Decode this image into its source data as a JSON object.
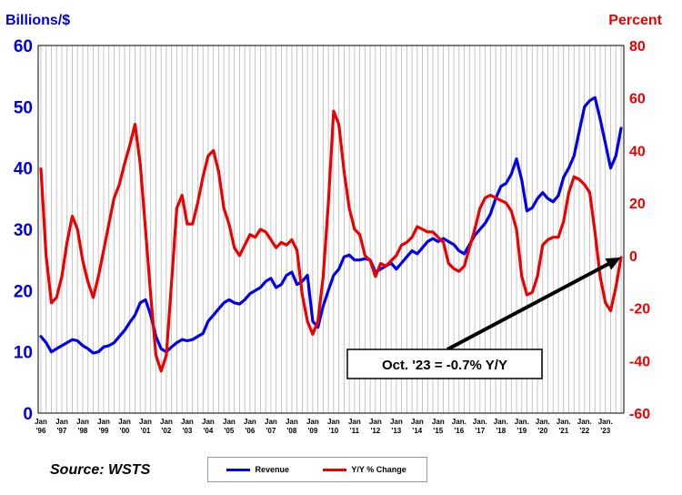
{
  "chart_data": {
    "type": "line",
    "left_axis_title": "Billions/$",
    "right_axis_title": "Percent",
    "left_ylim": [
      0,
      60
    ],
    "left_ticks": [
      "0",
      "10",
      "20",
      "30",
      "40",
      "50",
      "60"
    ],
    "right_ylim": [
      -60,
      80
    ],
    "right_ticks": [
      "-60",
      "-40",
      "-20",
      "0",
      "20",
      "40",
      "60",
      "80"
    ],
    "x_range": [
      "1996-01",
      "2023-10"
    ],
    "x_tick_labels": [
      {
        "top": "Jan",
        "bottom": "'96"
      },
      {
        "top": "Jan",
        "bottom": "'97"
      },
      {
        "top": "Jan",
        "bottom": "'98"
      },
      {
        "top": "Jan",
        "bottom": "'99"
      },
      {
        "top": "Jan",
        "bottom": "'00"
      },
      {
        "top": "Jan",
        "bottom": "'01"
      },
      {
        "top": "Jan",
        "bottom": "'02"
      },
      {
        "top": "Jan",
        "bottom": "'03"
      },
      {
        "top": "Jan",
        "bottom": "'04"
      },
      {
        "top": "Jan",
        "bottom": "'05"
      },
      {
        "top": "Jan",
        "bottom": "'06"
      },
      {
        "top": "Jan",
        "bottom": "'07"
      },
      {
        "top": "Jan",
        "bottom": "'08"
      },
      {
        "top": "Jan",
        "bottom": "'09"
      },
      {
        "top": "Jan",
        "bottom": "'10"
      },
      {
        "top": "Jan",
        "bottom": "'11"
      },
      {
        "top": "Jan",
        "bottom": "'12"
      },
      {
        "top": "Jan",
        "bottom": "'13"
      },
      {
        "top": "Jan",
        "bottom": "'14"
      },
      {
        "top": "Jan",
        "bottom": "'15"
      },
      {
        "top": "Jan.",
        "bottom": "'16"
      },
      {
        "top": "Jan.",
        "bottom": "'17"
      },
      {
        "top": "Jan.",
        "bottom": "'18"
      },
      {
        "top": "Jan.",
        "bottom": "'19"
      },
      {
        "top": "Jan.",
        "bottom": "'20"
      },
      {
        "top": "Jan.",
        "bottom": "'21"
      },
      {
        "top": "Jan.",
        "bottom": "'22"
      },
      {
        "top": "Jan.",
        "bottom": "'23"
      }
    ],
    "grid": "vertical",
    "series": [
      {
        "name": "Revenue",
        "axis": "left",
        "color": "#0000ee",
        "points": [
          [
            "1996-01",
            12.5
          ],
          [
            "1996-04",
            11.5
          ],
          [
            "1996-07",
            10.0
          ],
          [
            "1996-10",
            10.5
          ],
          [
            "1997-01",
            11.0
          ],
          [
            "1997-04",
            11.5
          ],
          [
            "1997-07",
            12.0
          ],
          [
            "1997-10",
            11.8
          ],
          [
            "1998-01",
            11.0
          ],
          [
            "1998-04",
            10.5
          ],
          [
            "1998-07",
            9.8
          ],
          [
            "1998-10",
            10.0
          ],
          [
            "1999-01",
            10.8
          ],
          [
            "1999-04",
            11.0
          ],
          [
            "1999-07",
            11.5
          ],
          [
            "1999-10",
            12.5
          ],
          [
            "2000-01",
            13.5
          ],
          [
            "2000-04",
            14.8
          ],
          [
            "2000-07",
            16.0
          ],
          [
            "2000-10",
            18.0
          ],
          [
            "2001-01",
            18.5
          ],
          [
            "2001-04",
            16.0
          ],
          [
            "2001-07",
            12.5
          ],
          [
            "2001-10",
            10.5
          ],
          [
            "2002-01",
            10.0
          ],
          [
            "2002-04",
            10.8
          ],
          [
            "2002-07",
            11.5
          ],
          [
            "2002-10",
            12.0
          ],
          [
            "2003-01",
            11.8
          ],
          [
            "2003-04",
            12.0
          ],
          [
            "2003-07",
            12.5
          ],
          [
            "2003-10",
            13.0
          ],
          [
            "2004-01",
            15.0
          ],
          [
            "2004-04",
            16.0
          ],
          [
            "2004-07",
            17.0
          ],
          [
            "2004-10",
            18.0
          ],
          [
            "2005-01",
            18.5
          ],
          [
            "2005-04",
            18.0
          ],
          [
            "2005-07",
            17.8
          ],
          [
            "2005-10",
            18.5
          ],
          [
            "2006-01",
            19.5
          ],
          [
            "2006-04",
            20.0
          ],
          [
            "2006-07",
            20.5
          ],
          [
            "2006-10",
            21.5
          ],
          [
            "2007-01",
            22.0
          ],
          [
            "2007-04",
            20.5
          ],
          [
            "2007-07",
            21.0
          ],
          [
            "2007-10",
            22.5
          ],
          [
            "2008-01",
            23.0
          ],
          [
            "2008-04",
            21.0
          ],
          [
            "2008-07",
            21.5
          ],
          [
            "2008-10",
            22.5
          ],
          [
            "2009-01",
            15.0
          ],
          [
            "2009-04",
            14.0
          ],
          [
            "2009-07",
            17.5
          ],
          [
            "2009-10",
            20.0
          ],
          [
            "2010-01",
            22.5
          ],
          [
            "2010-04",
            23.5
          ],
          [
            "2010-07",
            25.5
          ],
          [
            "2010-10",
            25.8
          ],
          [
            "2011-01",
            25.0
          ],
          [
            "2011-04",
            25.0
          ],
          [
            "2011-07",
            25.2
          ],
          [
            "2011-10",
            25.0
          ],
          [
            "2012-01",
            23.0
          ],
          [
            "2012-04",
            23.5
          ],
          [
            "2012-07",
            24.0
          ],
          [
            "2012-10",
            24.5
          ],
          [
            "2013-01",
            23.5
          ],
          [
            "2013-04",
            24.5
          ],
          [
            "2013-07",
            25.5
          ],
          [
            "2013-10",
            26.5
          ],
          [
            "2014-01",
            26.0
          ],
          [
            "2014-04",
            27.0
          ],
          [
            "2014-07",
            28.0
          ],
          [
            "2014-10",
            28.5
          ],
          [
            "2015-01",
            28.0
          ],
          [
            "2015-04",
            28.5
          ],
          [
            "2015-07",
            28.0
          ],
          [
            "2015-10",
            27.5
          ],
          [
            "2016-01",
            26.5
          ],
          [
            "2016-04",
            26.0
          ],
          [
            "2016-07",
            27.5
          ],
          [
            "2016-10",
            29.0
          ],
          [
            "2017-01",
            30.0
          ],
          [
            "2017-04",
            31.0
          ],
          [
            "2017-07",
            32.5
          ],
          [
            "2017-10",
            35.0
          ],
          [
            "2018-01",
            37.0
          ],
          [
            "2018-04",
            37.5
          ],
          [
            "2018-07",
            39.0
          ],
          [
            "2018-10",
            41.5
          ],
          [
            "2019-01",
            38.0
          ],
          [
            "2019-04",
            33.0
          ],
          [
            "2019-07",
            33.5
          ],
          [
            "2019-10",
            35.0
          ],
          [
            "2020-01",
            36.0
          ],
          [
            "2020-04",
            35.0
          ],
          [
            "2020-07",
            34.5
          ],
          [
            "2020-10",
            35.5
          ],
          [
            "2021-01",
            38.5
          ],
          [
            "2021-04",
            40.0
          ],
          [
            "2021-07",
            42.0
          ],
          [
            "2021-10",
            46.0
          ],
          [
            "2022-01",
            50.0
          ],
          [
            "2022-04",
            51.0
          ],
          [
            "2022-07",
            51.5
          ],
          [
            "2022-10",
            48.0
          ],
          [
            "2023-01",
            44.0
          ],
          [
            "2023-04",
            40.0
          ],
          [
            "2023-07",
            42.0
          ],
          [
            "2023-10",
            46.5
          ]
        ]
      },
      {
        "name": "Y/Y % Change",
        "axis": "right",
        "color": "#ee0000",
        "points": [
          [
            "1996-01",
            33
          ],
          [
            "1996-04",
            0
          ],
          [
            "1996-07",
            -18
          ],
          [
            "1996-10",
            -16
          ],
          [
            "1997-01",
            -8
          ],
          [
            "1997-04",
            5
          ],
          [
            "1997-07",
            15
          ],
          [
            "1997-10",
            10
          ],
          [
            "1998-01",
            -2
          ],
          [
            "1998-04",
            -10
          ],
          [
            "1998-07",
            -16
          ],
          [
            "1998-10",
            -8
          ],
          [
            "1999-01",
            2
          ],
          [
            "1999-04",
            12
          ],
          [
            "1999-07",
            22
          ],
          [
            "1999-10",
            27
          ],
          [
            "2000-01",
            35
          ],
          [
            "2000-04",
            42
          ],
          [
            "2000-07",
            50
          ],
          [
            "2000-10",
            35
          ],
          [
            "2001-01",
            10
          ],
          [
            "2001-04",
            -15
          ],
          [
            "2001-07",
            -38
          ],
          [
            "2001-10",
            -44
          ],
          [
            "2002-01",
            -38
          ],
          [
            "2002-04",
            -10
          ],
          [
            "2002-07",
            18
          ],
          [
            "2002-10",
            23
          ],
          [
            "2003-01",
            12
          ],
          [
            "2003-04",
            12
          ],
          [
            "2003-07",
            20
          ],
          [
            "2003-10",
            30
          ],
          [
            "2004-01",
            38
          ],
          [
            "2004-04",
            40
          ],
          [
            "2004-07",
            32
          ],
          [
            "2004-10",
            18
          ],
          [
            "2005-01",
            12
          ],
          [
            "2005-04",
            3
          ],
          [
            "2005-07",
            0
          ],
          [
            "2005-10",
            4
          ],
          [
            "2006-01",
            8
          ],
          [
            "2006-04",
            7
          ],
          [
            "2006-07",
            10
          ],
          [
            "2006-10",
            9
          ],
          [
            "2007-01",
            6
          ],
          [
            "2007-04",
            3
          ],
          [
            "2007-07",
            5
          ],
          [
            "2007-10",
            4
          ],
          [
            "2008-01",
            6
          ],
          [
            "2008-04",
            2
          ],
          [
            "2008-07",
            -15
          ],
          [
            "2008-10",
            -25
          ],
          [
            "2009-01",
            -30
          ],
          [
            "2009-04",
            -25
          ],
          [
            "2009-07",
            -8
          ],
          [
            "2009-10",
            20
          ],
          [
            "2010-01",
            55
          ],
          [
            "2010-04",
            50
          ],
          [
            "2010-07",
            32
          ],
          [
            "2010-10",
            18
          ],
          [
            "2011-01",
            10
          ],
          [
            "2011-04",
            8
          ],
          [
            "2011-07",
            0
          ],
          [
            "2011-10",
            -2
          ],
          [
            "2012-01",
            -8
          ],
          [
            "2012-04",
            -3
          ],
          [
            "2012-07",
            -4
          ],
          [
            "2012-10",
            -2
          ],
          [
            "2013-01",
            0
          ],
          [
            "2013-04",
            4
          ],
          [
            "2013-07",
            5
          ],
          [
            "2013-10",
            7
          ],
          [
            "2014-01",
            11
          ],
          [
            "2014-04",
            10
          ],
          [
            "2014-07",
            9
          ],
          [
            "2014-10",
            9
          ],
          [
            "2015-01",
            7
          ],
          [
            "2015-04",
            5
          ],
          [
            "2015-07",
            -3
          ],
          [
            "2015-10",
            -5
          ],
          [
            "2016-01",
            -6
          ],
          [
            "2016-04",
            -4
          ],
          [
            "2016-07",
            3
          ],
          [
            "2016-10",
            10
          ],
          [
            "2017-01",
            18
          ],
          [
            "2017-04",
            22
          ],
          [
            "2017-07",
            23
          ],
          [
            "2017-10",
            22
          ],
          [
            "2018-01",
            21
          ],
          [
            "2018-04",
            20
          ],
          [
            "2018-07",
            17
          ],
          [
            "2018-10",
            10
          ],
          [
            "2019-01",
            -8
          ],
          [
            "2019-04",
            -15
          ],
          [
            "2019-07",
            -14
          ],
          [
            "2019-10",
            -8
          ],
          [
            "2020-01",
            4
          ],
          [
            "2020-04",
            6
          ],
          [
            "2020-07",
            7
          ],
          [
            "2020-10",
            7
          ],
          [
            "2021-01",
            13
          ],
          [
            "2021-04",
            24
          ],
          [
            "2021-07",
            30
          ],
          [
            "2021-10",
            29
          ],
          [
            "2022-01",
            27
          ],
          [
            "2022-04",
            24
          ],
          [
            "2022-07",
            9
          ],
          [
            "2022-10",
            -8
          ],
          [
            "2023-01",
            -18
          ],
          [
            "2023-04",
            -21
          ],
          [
            "2023-07",
            -12
          ],
          [
            "2023-10",
            -0.7
          ]
        ]
      }
    ],
    "annotation": {
      "text": "Oct. '23 = -0.7% Y/Y",
      "points_to": [
        "2023-10",
        -0.7
      ]
    }
  },
  "source": "Source: WSTS",
  "legend": {
    "revenue_label": "Revenue",
    "revenue_color": "#0000ee",
    "yoy_label": "Y/Y % Change",
    "yoy_color": "#ee0000"
  }
}
